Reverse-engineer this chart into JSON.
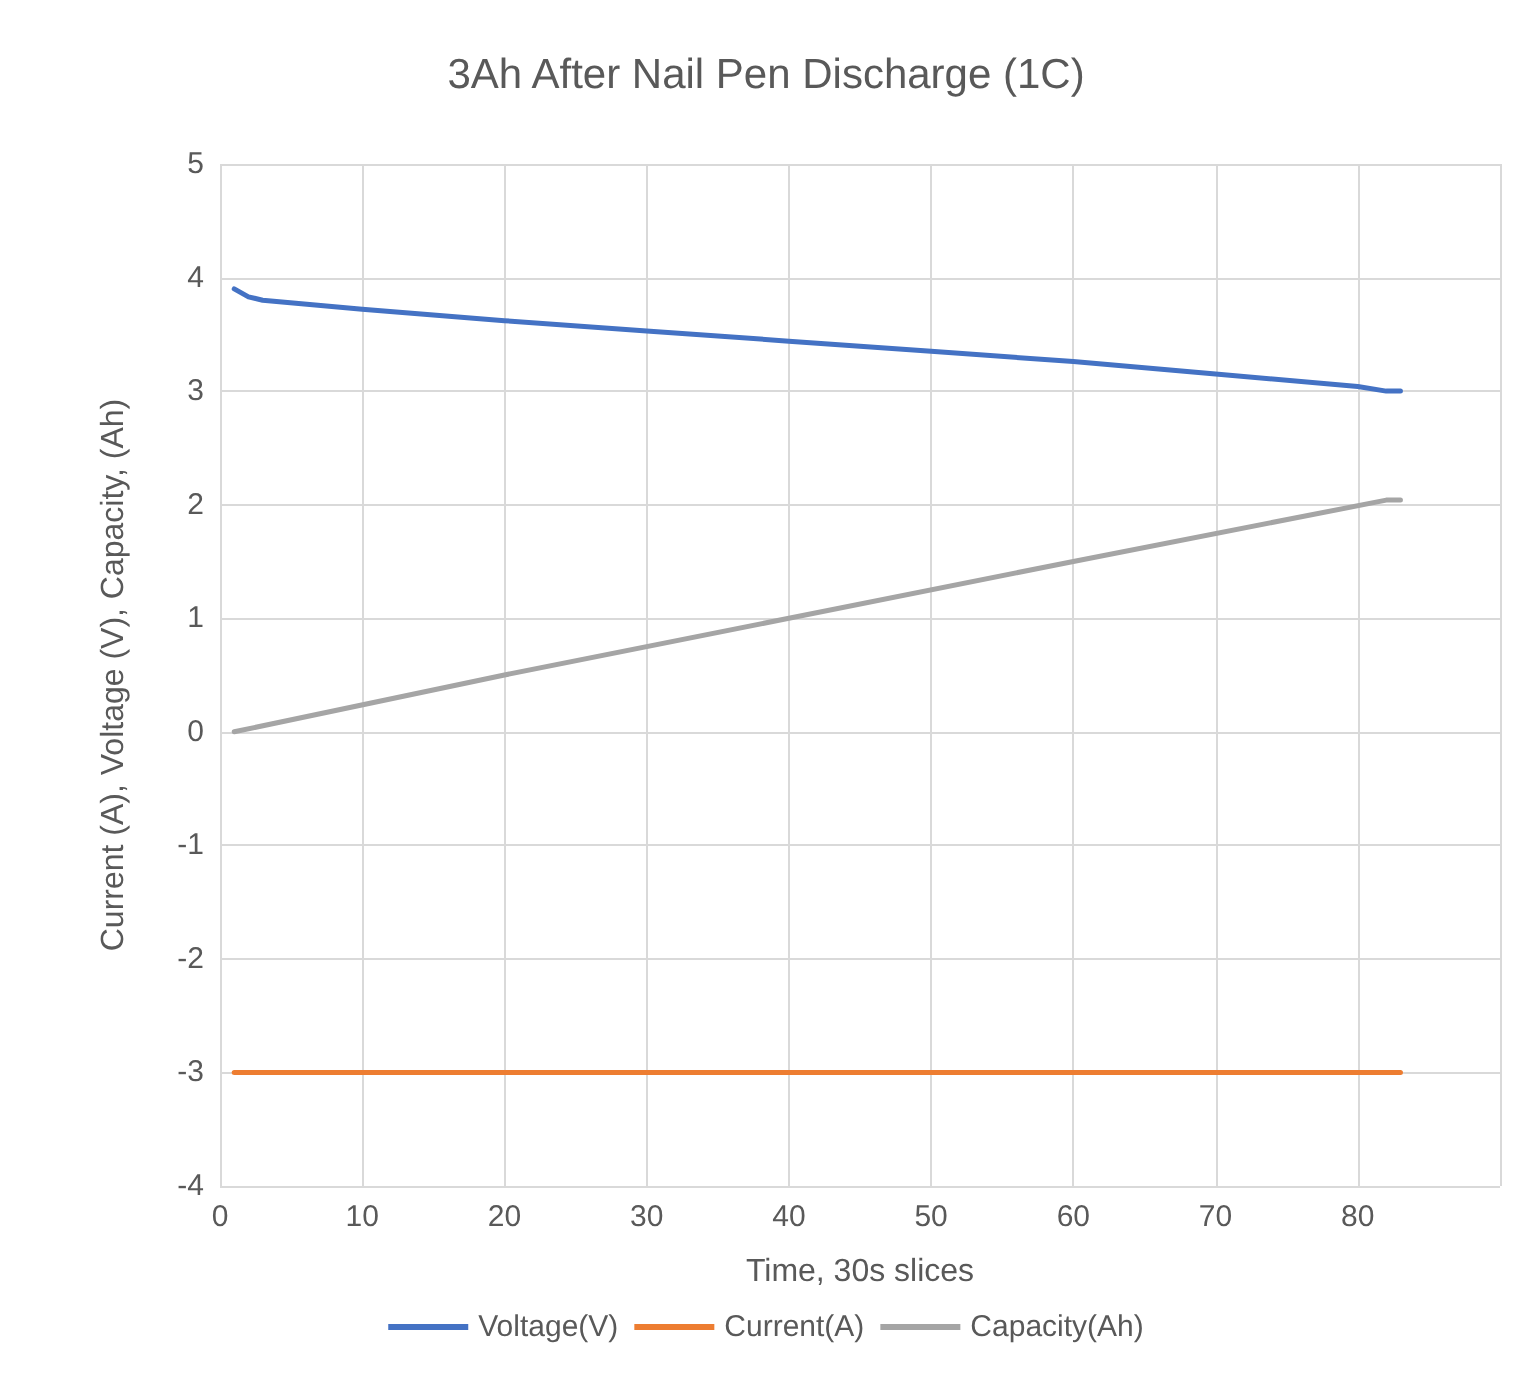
{
  "chart_data": {
    "type": "line",
    "title": "3Ah After Nail Pen Discharge (1C)",
    "xlabel": "Time, 30s slices",
    "ylabel": "Current (A), Voltage (V), Capacity, (Ah)",
    "xlim": [
      0,
      90
    ],
    "xticks": [
      0,
      10,
      20,
      30,
      40,
      50,
      60,
      70,
      80,
      {
        "value": 90,
        "label": null
      }
    ],
    "ylim": [
      -4,
      5
    ],
    "yticks": [
      -4,
      -3,
      -2,
      -1,
      0,
      1,
      2,
      3,
      4,
      5
    ],
    "grid": true,
    "legend": "bottom",
    "marker": "none",
    "line_style": "solid",
    "series": [
      {
        "name": "Voltage(V)",
        "color": "#4472c4",
        "x": [
          1,
          2,
          3,
          10,
          20,
          30,
          40,
          50,
          60,
          70,
          80,
          82,
          83
        ],
        "values": [
          3.9,
          3.83,
          3.8,
          3.72,
          3.62,
          3.53,
          3.44,
          3.35,
          3.26,
          3.15,
          3.04,
          3.0,
          3.0
        ]
      },
      {
        "name": "Current(A)",
        "color": "#ed7d31",
        "x": [
          1,
          83
        ],
        "values": [
          -3,
          -3
        ]
      },
      {
        "name": "Capacity(Ah)",
        "color": "#a5a5a5",
        "x": [
          1,
          20,
          40,
          60,
          82,
          83
        ],
        "values": [
          0,
          0.5,
          1.0,
          1.5,
          2.04,
          2.04
        ]
      }
    ]
  }
}
